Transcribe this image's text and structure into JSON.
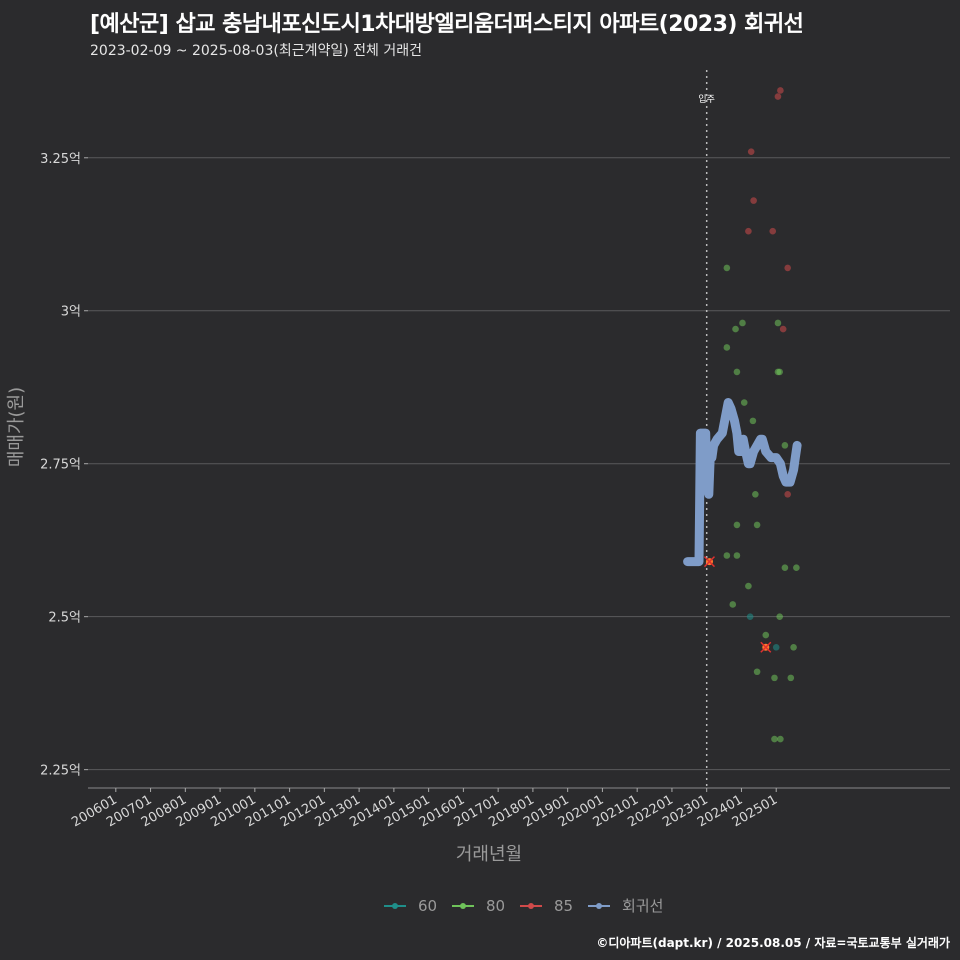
{
  "title": "[예산군] 삽교 충남내포신도시1차대방엘리움더퍼스티지 아파트(2023) 회귀선",
  "subtitle": "2023-02-09 ~ 2025-08-03(최근계약일) 전체 거래건",
  "caption": "©디아파트(dapt.kr) / 2025.08.05 / 자료=국토교통부 실거래가",
  "colors": {
    "background": "#2b2b2d",
    "grid": "#5a5a5c",
    "s60": "#1f8f8a",
    "s80": "#6fc35a",
    "s85": "#d04a4a",
    "regression": "#7f9cc8",
    "vline": "#bbbbbb"
  },
  "chart_data": {
    "type": "scatter",
    "xlabel": "거래년월",
    "ylabel": "매매가(원)",
    "x_ticks": [
      "200601",
      "200701",
      "200801",
      "200901",
      "201001",
      "201101",
      "201201",
      "201301",
      "201401",
      "201501",
      "201601",
      "201701",
      "201801",
      "201901",
      "202001",
      "202101",
      "202201",
      "202301",
      "202401",
      "202501"
    ],
    "y_ticks": [
      "2.25억",
      "2.5억",
      "2.75억",
      "3억",
      "3.25억"
    ],
    "y_tick_values": [
      2.25,
      2.5,
      2.75,
      3.0,
      3.25
    ],
    "xlim": [
      2005.2,
      2030.0
    ],
    "ylim": [
      2.22,
      3.4
    ],
    "vline": {
      "x": 2023.0,
      "label": "입주"
    },
    "legend": [
      "60",
      "80",
      "85",
      "회귀선"
    ],
    "series": [
      {
        "name": "60",
        "points": [
          [
            2024.25,
            2.5
          ],
          [
            2025.0,
            2.45
          ]
        ]
      },
      {
        "name": "80",
        "points": [
          [
            2023.58,
            3.07
          ],
          [
            2023.58,
            2.94
          ],
          [
            2023.58,
            2.6
          ],
          [
            2023.75,
            2.52
          ],
          [
            2023.83,
            2.97
          ],
          [
            2023.87,
            2.9
          ],
          [
            2023.87,
            2.65
          ],
          [
            2023.87,
            2.6
          ],
          [
            2024.03,
            2.98
          ],
          [
            2024.08,
            2.85
          ],
          [
            2024.2,
            2.55
          ],
          [
            2024.33,
            2.82
          ],
          [
            2024.4,
            2.7
          ],
          [
            2024.45,
            2.65
          ],
          [
            2024.45,
            2.41
          ],
          [
            2024.7,
            2.47
          ],
          [
            2024.95,
            2.4
          ],
          [
            2024.95,
            2.3
          ],
          [
            2025.05,
            2.98
          ],
          [
            2025.05,
            2.9
          ],
          [
            2025.1,
            2.9
          ],
          [
            2025.1,
            2.5
          ],
          [
            2025.12,
            2.3
          ],
          [
            2025.25,
            2.78
          ],
          [
            2025.25,
            2.58
          ],
          [
            2025.5,
            2.45
          ],
          [
            2025.42,
            2.4
          ],
          [
            2025.58,
            2.58
          ]
        ]
      },
      {
        "name": "85",
        "points": [
          [
            2023.08,
            2.59
          ],
          [
            2024.2,
            3.13
          ],
          [
            2024.28,
            3.26
          ],
          [
            2024.35,
            3.18
          ],
          [
            2024.9,
            3.13
          ],
          [
            2025.05,
            3.35
          ],
          [
            2025.12,
            3.36
          ],
          [
            2025.2,
            2.97
          ],
          [
            2025.33,
            3.07
          ],
          [
            2025.33,
            2.7
          ],
          [
            2024.7,
            2.45
          ]
        ]
      },
      {
        "name": "회귀선",
        "points": [
          [
            2022.45,
            2.59
          ],
          [
            2022.55,
            2.59
          ],
          [
            2022.7,
            2.59
          ],
          [
            2022.78,
            2.59
          ],
          [
            2022.82,
            2.8
          ],
          [
            2022.97,
            2.8
          ],
          [
            2023.0,
            2.72
          ],
          [
            2023.06,
            2.7
          ],
          [
            2023.1,
            2.76
          ],
          [
            2023.15,
            2.76
          ],
          [
            2023.2,
            2.78
          ],
          [
            2023.3,
            2.79
          ],
          [
            2023.45,
            2.8
          ],
          [
            2023.55,
            2.83
          ],
          [
            2023.62,
            2.85
          ],
          [
            2023.7,
            2.84
          ],
          [
            2023.8,
            2.82
          ],
          [
            2023.87,
            2.8
          ],
          [
            2023.92,
            2.77
          ],
          [
            2024.0,
            2.77
          ],
          [
            2024.05,
            2.79
          ],
          [
            2024.12,
            2.77
          ],
          [
            2024.2,
            2.75
          ],
          [
            2024.25,
            2.75
          ],
          [
            2024.35,
            2.77
          ],
          [
            2024.45,
            2.78
          ],
          [
            2024.55,
            2.79
          ],
          [
            2024.6,
            2.79
          ],
          [
            2024.7,
            2.77
          ],
          [
            2024.85,
            2.76
          ],
          [
            2025.0,
            2.76
          ],
          [
            2025.12,
            2.75
          ],
          [
            2025.2,
            2.73
          ],
          [
            2025.28,
            2.72
          ],
          [
            2025.4,
            2.72
          ],
          [
            2025.5,
            2.74
          ],
          [
            2025.55,
            2.76
          ],
          [
            2025.6,
            2.78
          ]
        ]
      }
    ],
    "markers_x": [
      [
        2023.08,
        2.59
      ],
      [
        2024.7,
        2.45
      ]
    ]
  }
}
